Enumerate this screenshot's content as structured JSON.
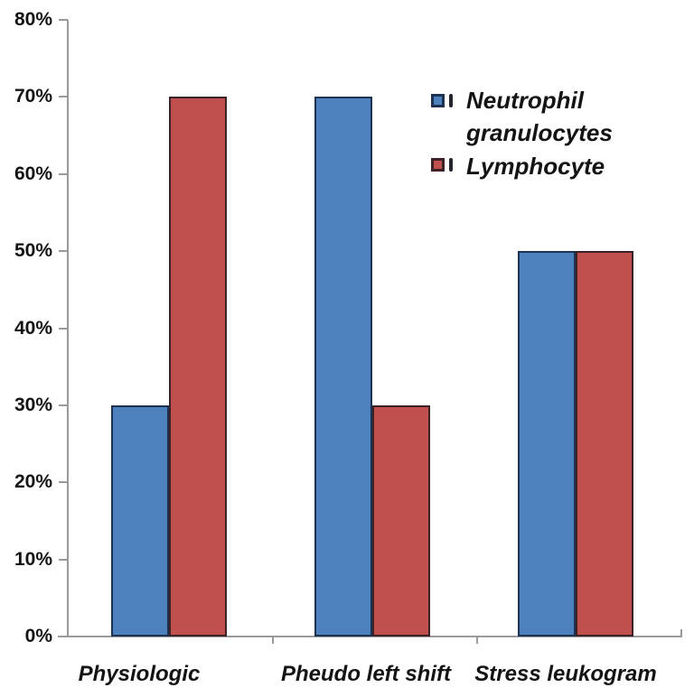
{
  "chart_data": {
    "type": "bar",
    "title": "",
    "categories": [
      "Physiologic",
      "Pheudo left shift",
      "Stress leukogram"
    ],
    "series": [
      {
        "name": "Neutrophil granulocytes",
        "values": [
          30,
          70,
          50
        ],
        "color": "#4d81bd",
        "border_color": "#1d3250"
      },
      {
        "name": "Lymphocyte",
        "values": [
          70,
          30,
          50
        ],
        "color": "#c0504d",
        "border_color": "#3c2226"
      }
    ],
    "y_axis": {
      "ticks": [
        "0%",
        "10%",
        "20%",
        "30%",
        "40%",
        "50%",
        "60%",
        "70%",
        "80%"
      ],
      "min": 0,
      "max": 80,
      "unit": "%"
    },
    "x_axis": {
      "label": ""
    },
    "grid": false,
    "legend": {
      "position": "top-right",
      "items": [
        {
          "lines": [
            "Neutrophil",
            "granulocytes"
          ],
          "color": "#4d81bd",
          "border_color": "#1d3250"
        },
        {
          "lines": [
            "Lymphocyte"
          ],
          "color": "#c0504d",
          "border_color": "#3c2226"
        }
      ]
    },
    "axis_color": "#9a9a9a",
    "text_color": "#141414",
    "background_color": "#ffffff"
  }
}
